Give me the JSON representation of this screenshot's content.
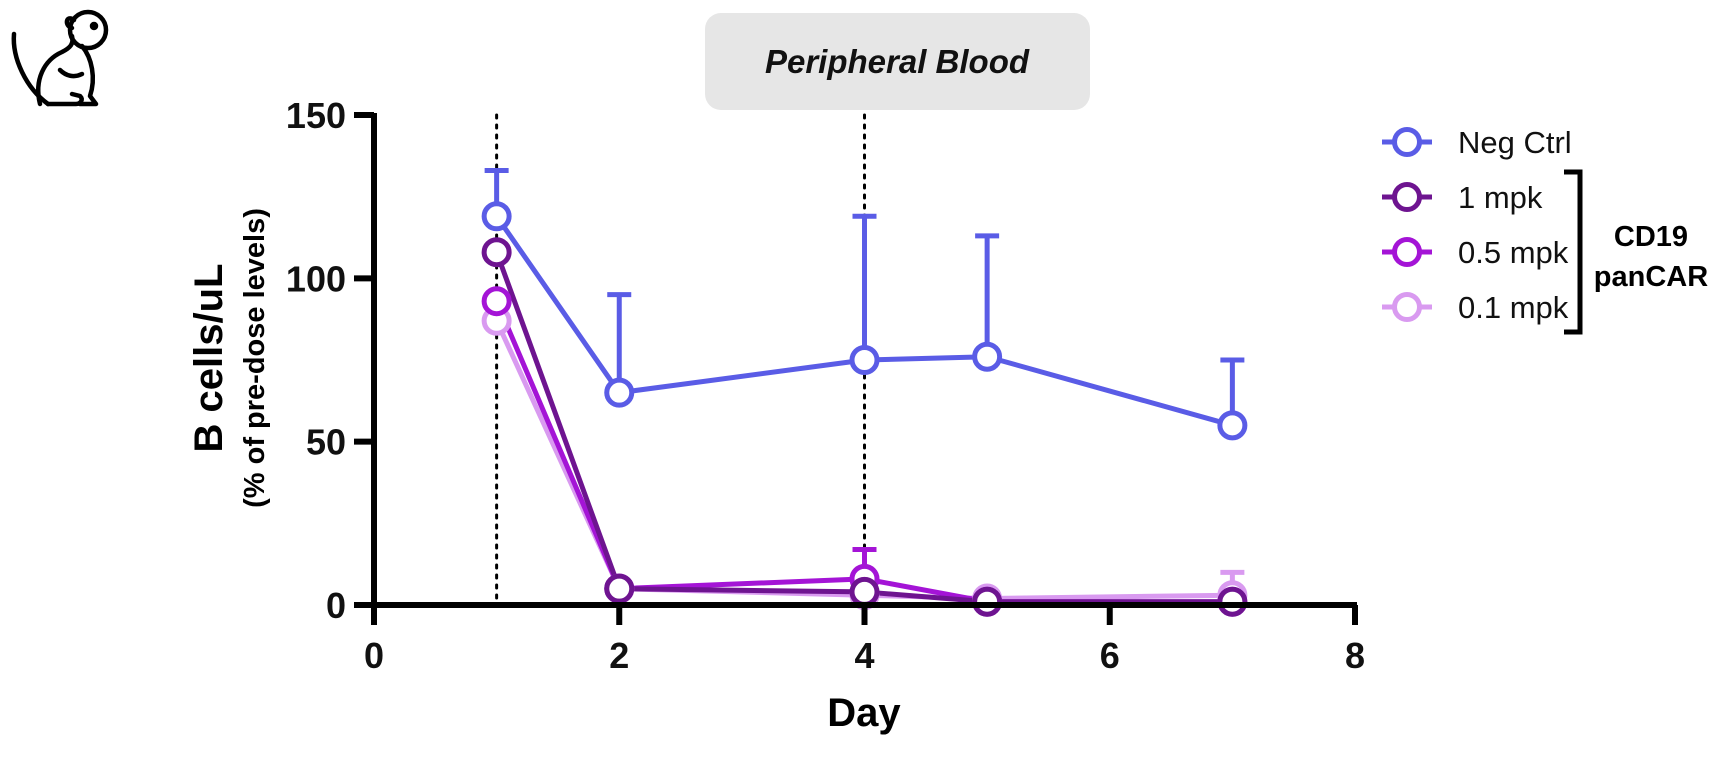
{
  "chart_data": {
    "type": "line",
    "title": "Peripheral Blood",
    "xlabel": "Day",
    "ylabel": "B cells/uL",
    "ylabel_sub": "(% of pre-dose levels)",
    "xlim": [
      0,
      8
    ],
    "ylim": [
      0,
      150
    ],
    "xticks": [
      0,
      2,
      4,
      6,
      8
    ],
    "yticks": [
      0,
      50,
      100,
      150
    ],
    "reference_lines_x": [
      1,
      4
    ],
    "legend_position": "top-right",
    "legend_group_label": "CD19 panCAR",
    "legend_group_label_lines": [
      "CD19",
      "panCAR"
    ],
    "series": [
      {
        "name": "Neg Ctrl",
        "color": "#5a5ce6",
        "x": [
          1,
          2,
          4,
          5,
          7
        ],
        "y": [
          119,
          65,
          75,
          76,
          55
        ],
        "error_upper": [
          133,
          95,
          119,
          113,
          75
        ]
      },
      {
        "name": "1 mpk",
        "color": "#6e1490",
        "x": [
          1,
          2,
          4,
          5,
          7
        ],
        "y": [
          108,
          5,
          4,
          1,
          1
        ],
        "error_upper": [
          null,
          null,
          null,
          null,
          null
        ]
      },
      {
        "name": "0.5 mpk",
        "color": "#a414d6",
        "x": [
          1,
          2,
          4,
          5,
          7
        ],
        "y": [
          93,
          5,
          8,
          1,
          1
        ],
        "error_upper": [
          null,
          null,
          17,
          null,
          null
        ]
      },
      {
        "name": "0.1 mpk",
        "color": "#d99af0",
        "x": [
          1,
          2,
          4,
          5,
          7
        ],
        "y": [
          87,
          5,
          3,
          2,
          3
        ],
        "error_upper": [
          null,
          null,
          null,
          null,
          10
        ]
      }
    ]
  },
  "icons": {
    "corner": "monkey-icon"
  }
}
